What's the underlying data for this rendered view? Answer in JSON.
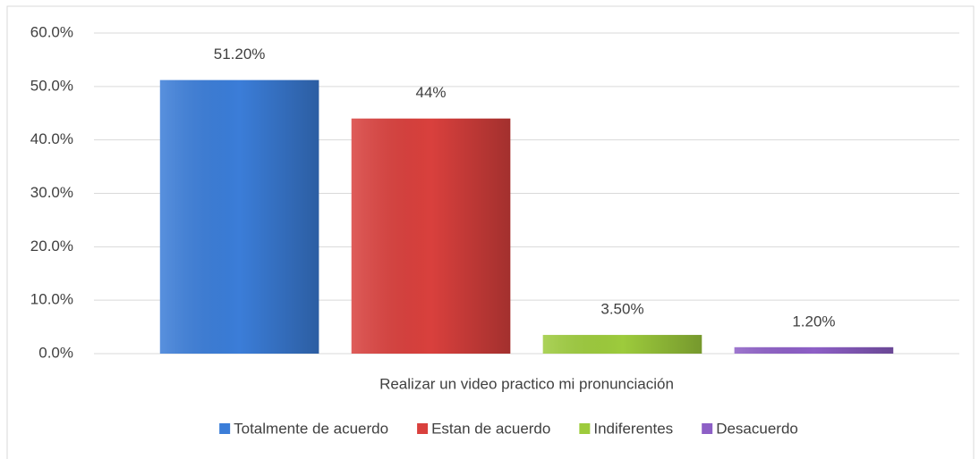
{
  "chart_data": {
    "type": "bar",
    "categories": [
      "Realizar un video practico mi pronunciación"
    ],
    "series": [
      {
        "name": "Totalmente de acuerdo",
        "color": "#3b7dd8",
        "values": [
          51.2
        ],
        "value_labels": [
          "51.20%"
        ]
      },
      {
        "name": "Estan de acuerdo",
        "color": "#d9403d",
        "values": [
          44
        ],
        "value_labels": [
          "44%"
        ]
      },
      {
        "name": "Indiferentes",
        "color": "#9dcb3c",
        "values": [
          3.5
        ],
        "value_labels": [
          "3.50%"
        ]
      },
      {
        "name": "Desacuerdo",
        "color": "#8d5fc6",
        "values": [
          1.2
        ],
        "value_labels": [
          "1.20%"
        ]
      }
    ],
    "ylim": [
      0,
      60
    ],
    "yticks": [
      {
        "value": 0,
        "label": "0.0%"
      },
      {
        "value": 10,
        "label": "10.0%"
      },
      {
        "value": 20,
        "label": "20.0%"
      },
      {
        "value": 30,
        "label": "30.0%"
      },
      {
        "value": 40,
        "label": "40.0%"
      },
      {
        "value": 50,
        "label": "50.0%"
      },
      {
        "value": 60,
        "label": "60.0%"
      }
    ],
    "grid": true,
    "legend": "bottom"
  }
}
